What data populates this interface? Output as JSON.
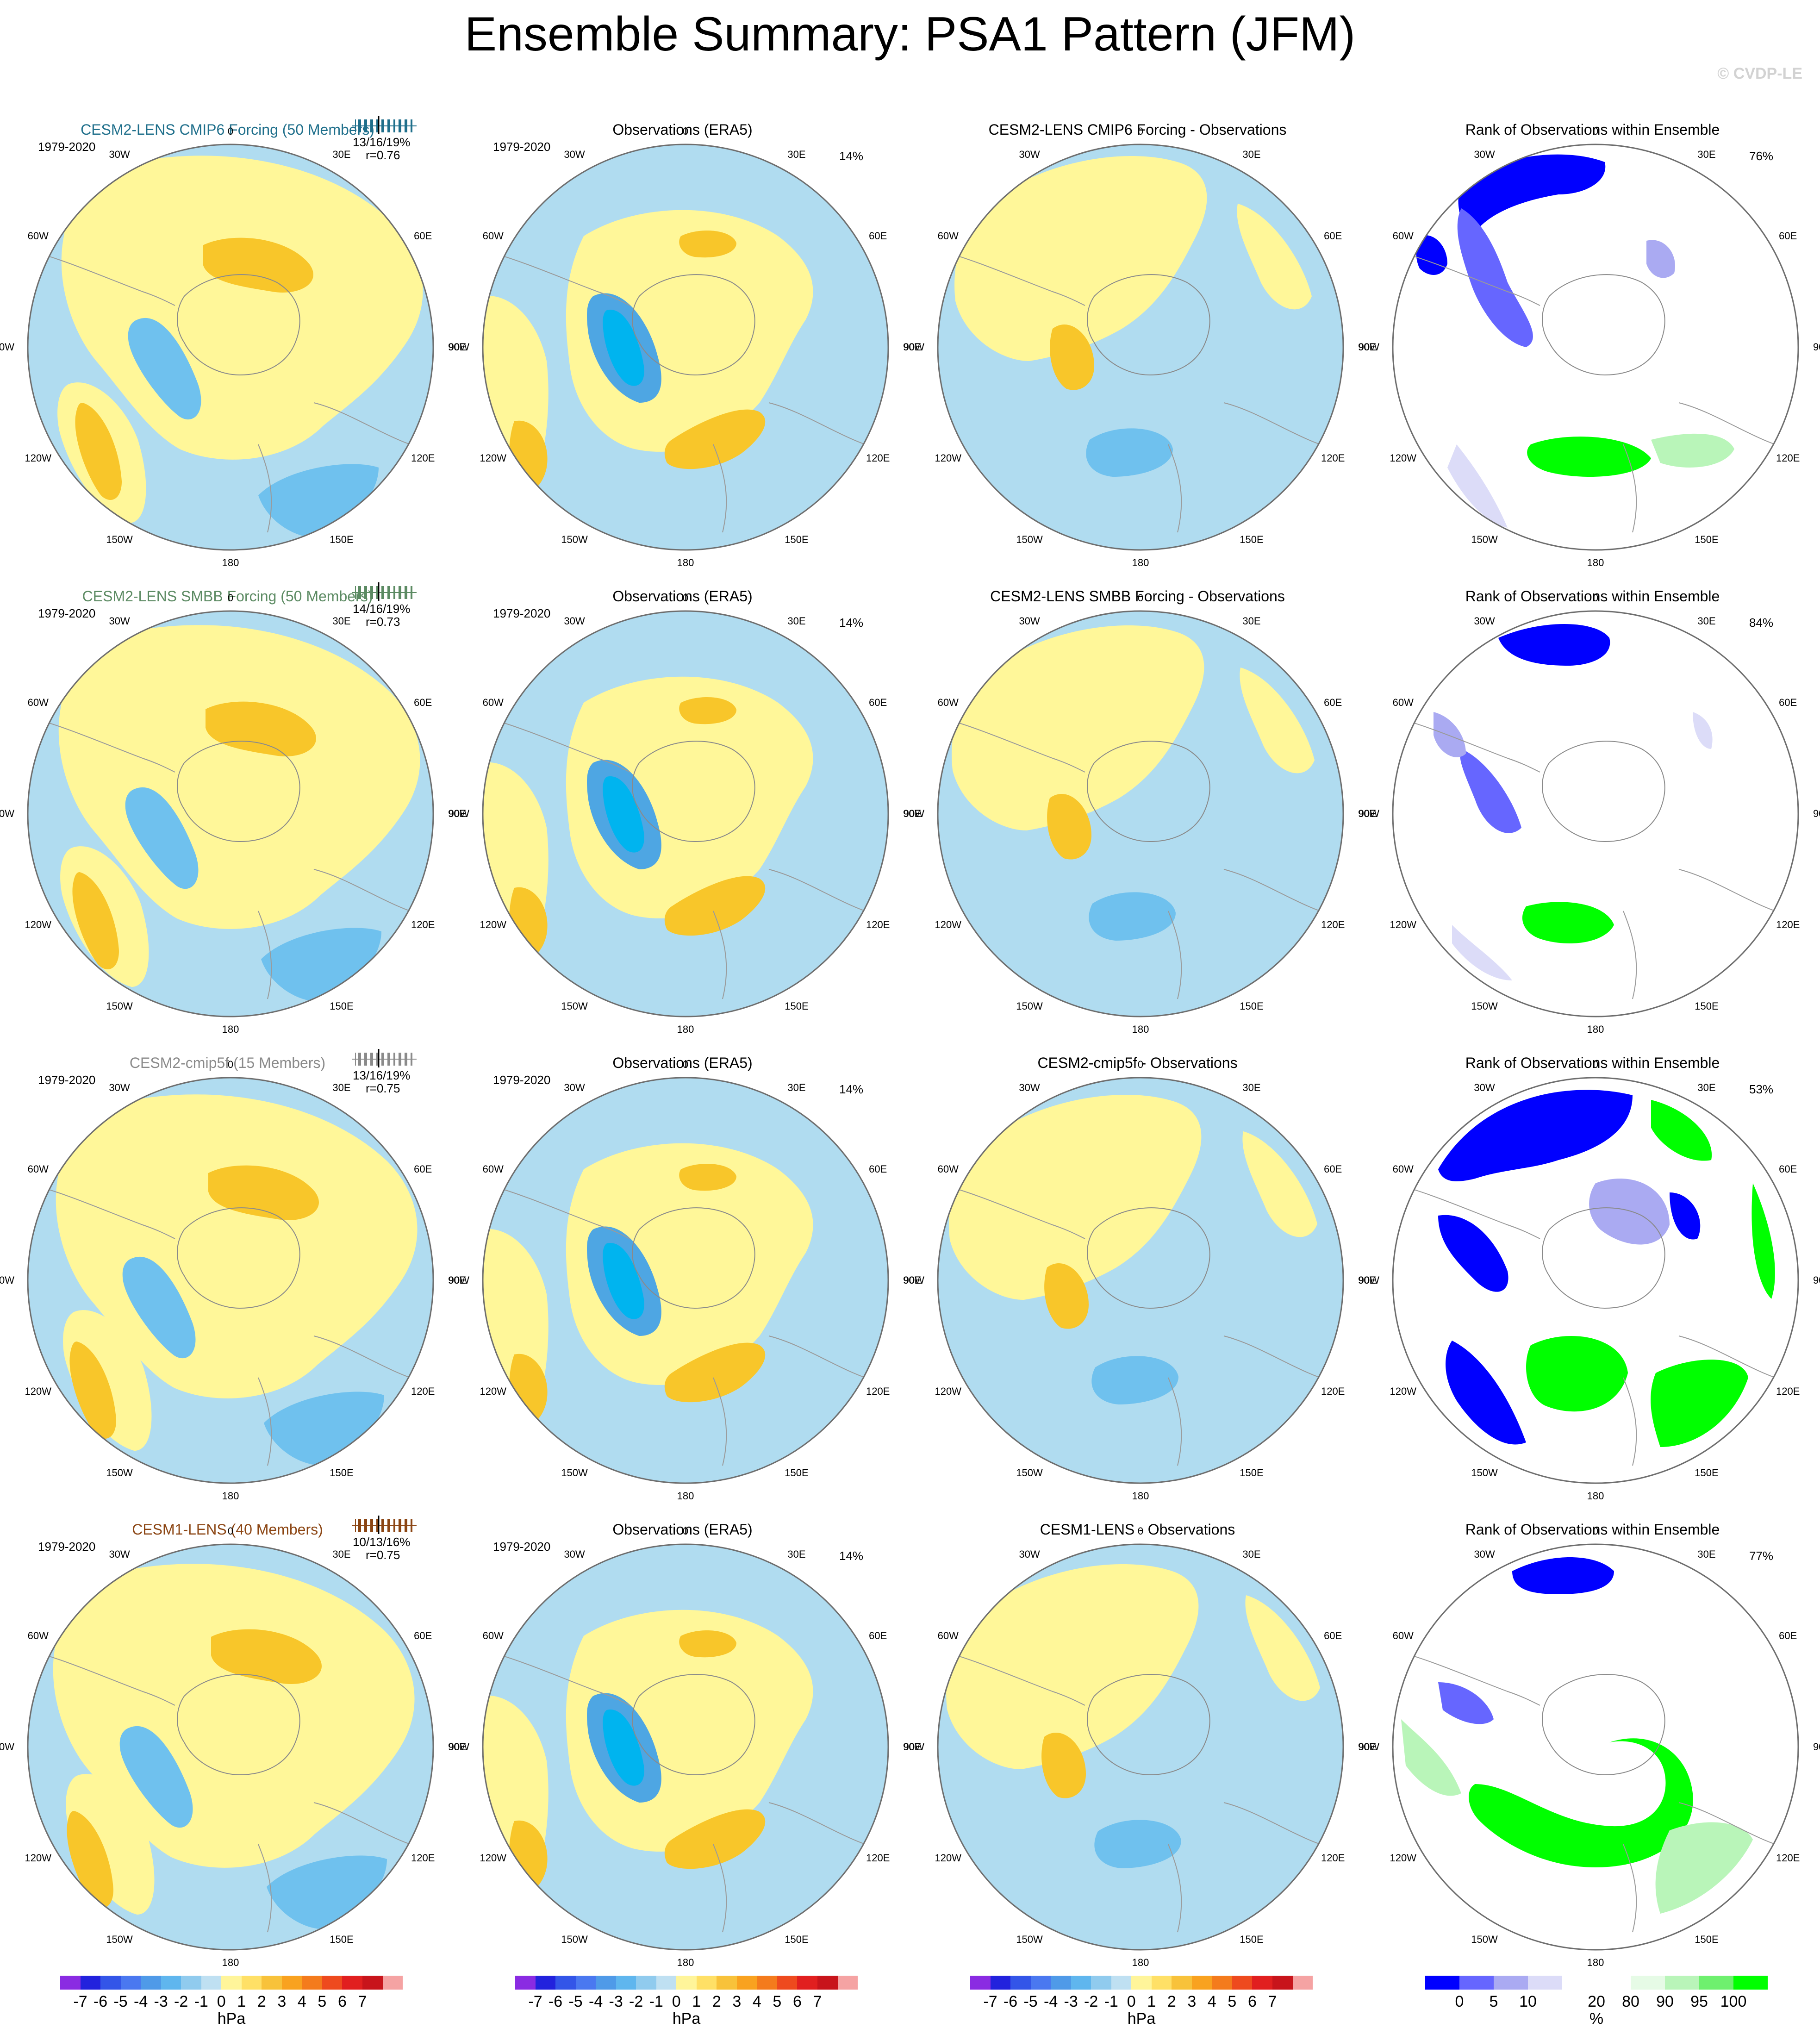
{
  "title": "Ensemble Summary: PSA1 Pattern (JFM)",
  "watermark": "© CVDP-LE",
  "years": "1979-2020",
  "lon_labels": [
    "0",
    "30E",
    "60E",
    "90E",
    "120E",
    "150E",
    "180",
    "150W",
    "120W",
    "90W",
    "60W",
    "30W"
  ],
  "rows": [
    {
      "model": {
        "title": "CESM2-LENS CMIP6 Forcing (50 Members)",
        "color": "#1f6f8b",
        "stats": "13/16/19%",
        "r": "r=0.76"
      },
      "obs": {
        "title": "Observations (ERA5)",
        "pct": "14%"
      },
      "diff": {
        "title": "CESM2-LENS CMIP6 Forcing - Observations"
      },
      "rank": {
        "title": "Rank of Observations within Ensemble",
        "pct": "76%"
      }
    },
    {
      "model": {
        "title": "CESM2-LENS SMBB Forcing (50 Members)",
        "color": "#5b8a62",
        "stats": "14/16/19%",
        "r": "r=0.73"
      },
      "obs": {
        "title": "Observations (ERA5)",
        "pct": "14%"
      },
      "diff": {
        "title": "CESM2-LENS SMBB Forcing - Observations"
      },
      "rank": {
        "title": "Rank of Observations within Ensemble",
        "pct": "84%"
      }
    },
    {
      "model": {
        "title": "CESM2-cmip5f (15 Members)",
        "color": "#8a8a8a",
        "stats": "13/16/19%",
        "r": "r=0.75"
      },
      "obs": {
        "title": "Observations (ERA5)",
        "pct": "14%"
      },
      "diff": {
        "title": "CESM2-cmip5f - Observations"
      },
      "rank": {
        "title": "Rank of Observations within Ensemble",
        "pct": "53%"
      }
    },
    {
      "model": {
        "title": "CESM1-LENS (40 Members)",
        "color": "#8b4513",
        "stats": "10/13/16%",
        "r": "r=0.75"
      },
      "obs": {
        "title": "Observations (ERA5)",
        "pct": "14%"
      },
      "diff": {
        "title": "CESM1-LENS - Observations"
      },
      "rank": {
        "title": "Rank of Observations within Ensemble",
        "pct": "77%"
      }
    }
  ],
  "colorbar_hpa": {
    "colors": [
      "#8a2be2",
      "#2222dd",
      "#3355e8",
      "#4a78f0",
      "#4f9ae8",
      "#5fb6ee",
      "#90cbee",
      "#bfe0f2",
      "#fff59a",
      "#ffe066",
      "#f8c23a",
      "#f9a21f",
      "#f47b1c",
      "#ee4a1e",
      "#e11f1f",
      "#c8141b",
      "#f5a3a3"
    ],
    "ticks": [
      "-7",
      "-6",
      "-5",
      "-4",
      "-3",
      "-2",
      "-1",
      "0",
      "1",
      "2",
      "3",
      "4",
      "5",
      "6",
      "7"
    ],
    "unit": "hPa"
  },
  "colorbar_rank": {
    "colors": [
      "#0000ff",
      "#6666ff",
      "#aaaaf2",
      "#dcdcf8",
      "#ffffff",
      "#ffffff",
      "#e6fbe6",
      "#b9f5b9",
      "#6ef06e",
      "#00ff00"
    ],
    "ticks": [
      "0",
      "5",
      "10",
      "20",
      "80",
      "90",
      "95",
      "100"
    ],
    "unit": "%"
  },
  "palette": {
    "blue_light": "#b0dcf0",
    "yellow_light": "#fff799",
    "orange": "#f8c62a",
    "blue_mid": "#6fc1ee",
    "blue_dark": "#00b4ef",
    "blue_medium2": "#4ea6e3"
  }
}
